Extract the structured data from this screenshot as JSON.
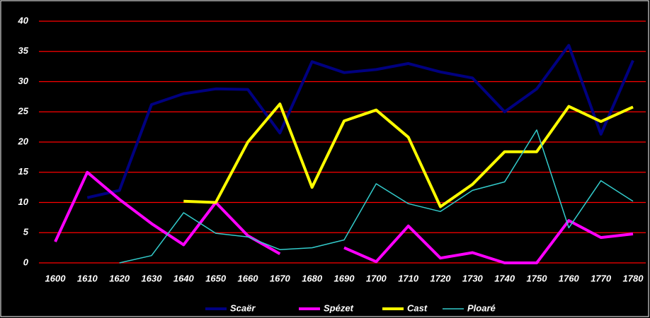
{
  "chart_data": {
    "type": "line",
    "categories": [
      "1600",
      "1610",
      "1620",
      "1630",
      "1640",
      "1650",
      "1660",
      "1670",
      "1680",
      "1690",
      "1700",
      "1710",
      "1720",
      "1730",
      "1740",
      "1750",
      "1760",
      "1770",
      "1780"
    ],
    "series": [
      {
        "name": "Scaër",
        "color": "#000080",
        "line_width": 4,
        "values": [
          null,
          10.8,
          12,
          26.2,
          28,
          28.8,
          28.7,
          21.5,
          33.3,
          31.5,
          32,
          33,
          31.6,
          30.6,
          25,
          28.8,
          36,
          21.3,
          33.5
        ]
      },
      {
        "name": "Spézet",
        "color": "#ff00ff",
        "line_width": 4,
        "values": [
          3.5,
          15,
          10.5,
          6.5,
          3,
          10,
          4.5,
          1.5,
          null,
          2.5,
          0.2,
          6.1,
          0.8,
          1.7,
          0,
          0,
          7,
          4.2,
          4.8
        ]
      },
      {
        "name": "Cast",
        "color": "#ffff00",
        "line_width": 4,
        "values": [
          null,
          null,
          null,
          null,
          10.2,
          10,
          20,
          26.3,
          12.5,
          23.5,
          25.3,
          20.8,
          9.3,
          13,
          18.4,
          18.4,
          25.9,
          23.4,
          25.8
        ]
      },
      {
        "name": "Ploaré",
        "color": "#33cccc",
        "line_width": 1.5,
        "values": [
          null,
          null,
          0,
          1.2,
          8.3,
          4.9,
          4.3,
          2.2,
          2.5,
          3.8,
          13.1,
          9.8,
          8.5,
          12,
          13.4,
          22,
          5.8,
          13.6,
          10.2
        ]
      }
    ],
    "ylim": [
      0,
      40
    ],
    "yticks": [
      0,
      5,
      10,
      15,
      20,
      25,
      30,
      35,
      40
    ],
    "grid": true,
    "grid_color": "#ff0000",
    "legend": "bottom"
  }
}
